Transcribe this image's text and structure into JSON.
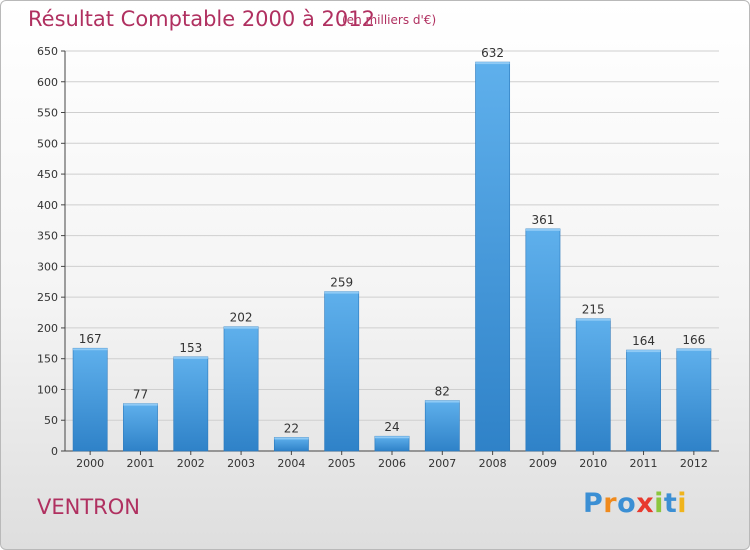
{
  "header": {
    "title": "Résultat Comptable 2000 à 2012",
    "subtitle": "(en milliers d'€)"
  },
  "footer": {
    "commune": "VENTRON",
    "brand_letters": [
      "P",
      "r",
      "o",
      "x",
      "i",
      "t",
      "i"
    ],
    "brand_colors": [
      "#3b8fd4",
      "#f08a1c",
      "#3b8fd4",
      "#e83a2e",
      "#8cc63e",
      "#3b8fd4",
      "#f0b41c"
    ]
  },
  "chart_data": {
    "type": "bar",
    "title": "Résultat Comptable 2000 à 2012",
    "subtitle": "(en milliers d'€)",
    "categories": [
      "2000",
      "2001",
      "2002",
      "2003",
      "2004",
      "2005",
      "2006",
      "2007",
      "2008",
      "2009",
      "2010",
      "2011",
      "2012"
    ],
    "values": [
      167,
      77,
      153,
      202,
      22,
      259,
      24,
      82,
      632,
      361,
      215,
      164,
      166
    ],
    "ylim": [
      0,
      650
    ],
    "yticks": [
      0,
      50,
      100,
      150,
      200,
      250,
      300,
      350,
      400,
      450,
      500,
      550,
      600,
      650
    ],
    "grid": true,
    "data_labels": true,
    "bar_color": "#4a9fe0"
  }
}
